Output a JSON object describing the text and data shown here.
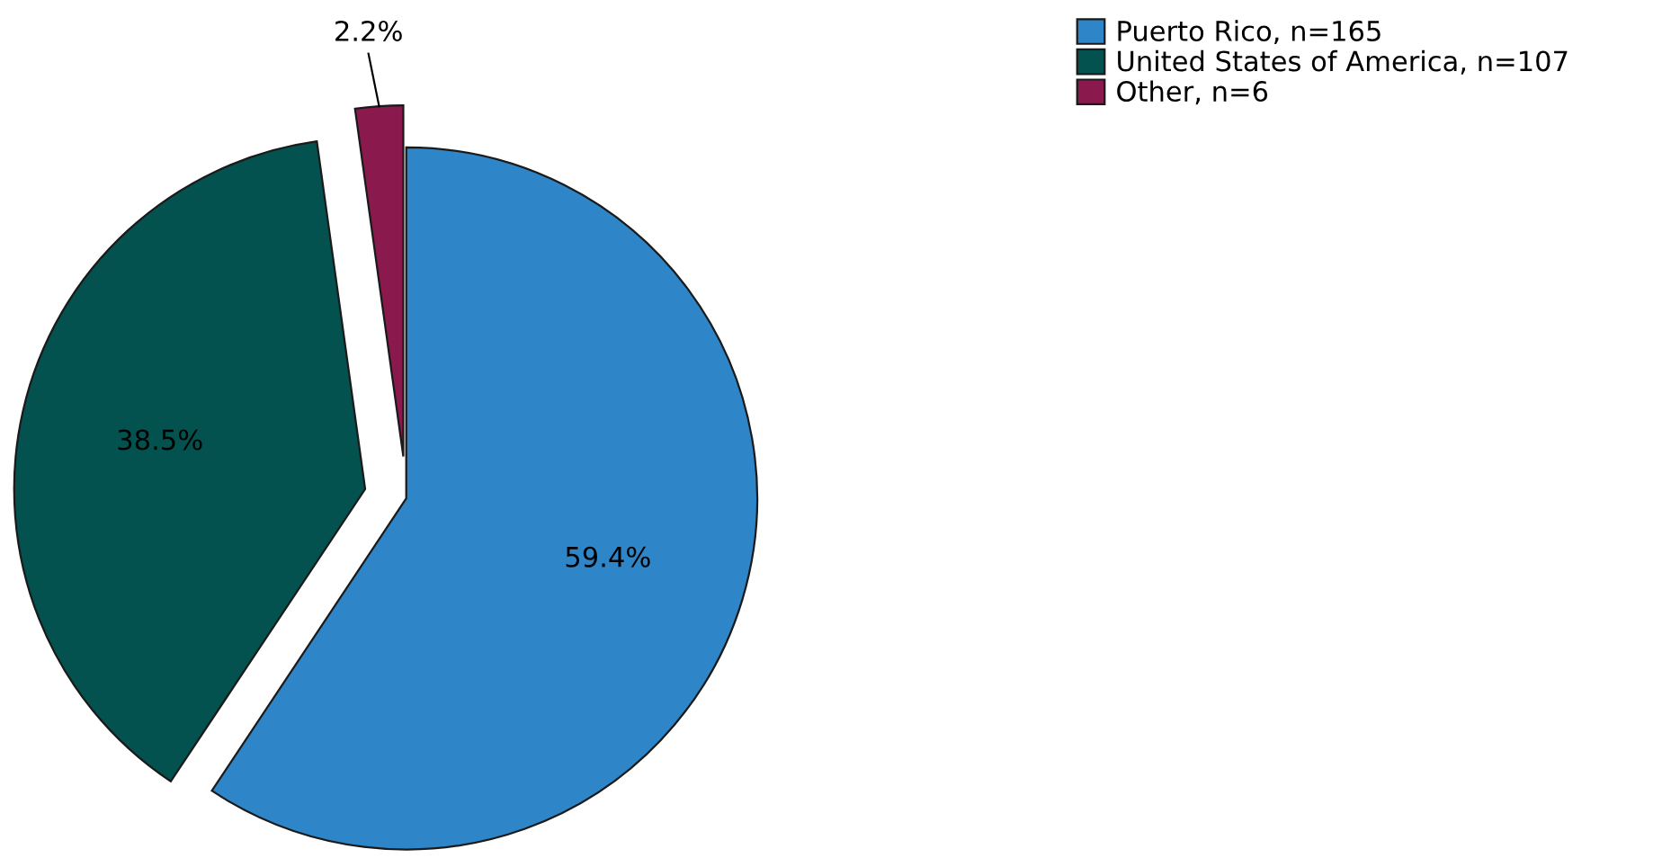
{
  "chart_data": {
    "type": "pie",
    "categories": [
      "Puerto Rico, n=165",
      "United States of America, n=107",
      "Other, n=6"
    ],
    "values": [
      59.4,
      38.5,
      2.2
    ],
    "colors": [
      "#2e86c8",
      "#04524f",
      "#8a1a4e"
    ],
    "value_labels": [
      "59.4%",
      "38.5%",
      "2.2%"
    ],
    "legend": "top right"
  }
}
